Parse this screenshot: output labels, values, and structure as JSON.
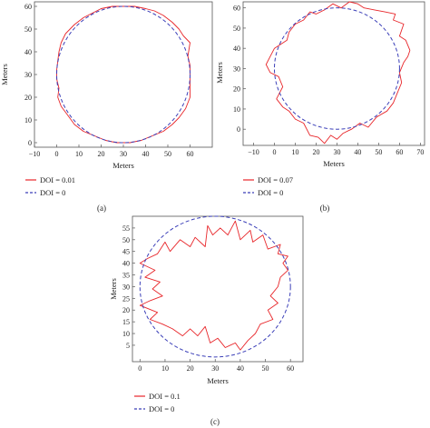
{
  "chart_data": [
    {
      "type": "line",
      "panel_label": "(a)",
      "xlabel": "Meters",
      "ylabel": "Meters",
      "xlim": [
        -10,
        70
      ],
      "ylim": [
        -2,
        62
      ],
      "xticks": [
        -10,
        0,
        10,
        20,
        30,
        40,
        50,
        60
      ],
      "yticks": [
        0,
        10,
        20,
        30,
        40,
        50,
        60
      ],
      "grid": false,
      "legend_position": "below",
      "series": [
        {
          "name": "DOI = 0.01",
          "color": "#e8262a",
          "dash": "solid",
          "points": [
            [
              60,
              30
            ],
            [
              60,
              34
            ],
            [
              59,
              38
            ],
            [
              60,
              44
            ],
            [
              57,
              47
            ],
            [
              55,
              50
            ],
            [
              52,
              53
            ],
            [
              48,
              56
            ],
            [
              44,
              58
            ],
            [
              40,
              59
            ],
            [
              35,
              60
            ],
            [
              30,
              60
            ],
            [
              25,
              60
            ],
            [
              20,
              59
            ],
            [
              16,
              57
            ],
            [
              12,
              55
            ],
            [
              8,
              52
            ],
            [
              4,
              48
            ],
            [
              2,
              44
            ],
            [
              1,
              40
            ],
            [
              0.5,
              36
            ],
            [
              0,
              32
            ],
            [
              0,
              28
            ],
            [
              1,
              24
            ],
            [
              0.5,
              20
            ],
            [
              2,
              16
            ],
            [
              5,
              12
            ],
            [
              8,
              8
            ],
            [
              12,
              5
            ],
            [
              17,
              3
            ],
            [
              22,
              1
            ],
            [
              27,
              0
            ],
            [
              33,
              0
            ],
            [
              38,
              1
            ],
            [
              43,
              3
            ],
            [
              48,
              5
            ],
            [
              52,
              8
            ],
            [
              55,
              11
            ],
            [
              58,
              15
            ],
            [
              60,
              20
            ],
            [
              60,
              25
            ],
            [
              60,
              30
            ]
          ]
        },
        {
          "name": "DOI = 0",
          "color": "#3b3fb8",
          "dash": "dashed",
          "circle": {
            "cx": 30,
            "cy": 30,
            "r": 30
          }
        }
      ]
    },
    {
      "type": "line",
      "panel_label": "(b)",
      "xlabel": "Meters",
      "ylabel": "Meters",
      "xlim": [
        -15,
        72
      ],
      "ylim": [
        -8,
        63
      ],
      "xticks": [
        -10,
        0,
        10,
        20,
        30,
        40,
        50,
        60,
        70
      ],
      "yticks": [
        0,
        10,
        20,
        30,
        40,
        50,
        60
      ],
      "grid": false,
      "legend_position": "below",
      "series": [
        {
          "name": "DOI = 0.07",
          "color": "#e8262a",
          "dash": "solid",
          "points": [
            [
              65,
              39
            ],
            [
              63,
              44
            ],
            [
              60,
              46
            ],
            [
              62,
              52
            ],
            [
              57,
              54
            ],
            [
              58,
              57
            ],
            [
              53,
              58
            ],
            [
              48,
              59
            ],
            [
              43,
              60
            ],
            [
              40,
              62
            ],
            [
              36,
              63
            ],
            [
              32,
              60
            ],
            [
              28,
              62
            ],
            [
              24,
              59
            ],
            [
              20,
              57
            ],
            [
              17,
              58
            ],
            [
              14,
              54
            ],
            [
              10,
              52
            ],
            [
              7,
              48
            ],
            [
              6,
              44
            ],
            [
              3,
              42
            ],
            [
              0,
              40
            ],
            [
              -2,
              36
            ],
            [
              -4,
              32
            ],
            [
              -2,
              28
            ],
            [
              2,
              26
            ],
            [
              4,
              21
            ],
            [
              1,
              15
            ],
            [
              4,
              11
            ],
            [
              7,
              9
            ],
            [
              10,
              5
            ],
            [
              14,
              3
            ],
            [
              17,
              -3
            ],
            [
              21,
              -4
            ],
            [
              24,
              -7
            ],
            [
              27,
              -3
            ],
            [
              30,
              -5
            ],
            [
              33,
              -2
            ],
            [
              37,
              0
            ],
            [
              41,
              3
            ],
            [
              45,
              1
            ],
            [
              49,
              6
            ],
            [
              54,
              9
            ],
            [
              57,
              13
            ],
            [
              59,
              18
            ],
            [
              61,
              23
            ],
            [
              60,
              28
            ],
            [
              62,
              33
            ],
            [
              64,
              36
            ],
            [
              65,
              39
            ]
          ]
        },
        {
          "name": "DOI = 0",
          "color": "#3b3fb8",
          "dash": "dashed",
          "circle": {
            "cx": 30,
            "cy": 30,
            "r": 30
          }
        }
      ]
    },
    {
      "type": "line",
      "panel_label": "(c)",
      "xlabel": "Meters",
      "ylabel": "Meters",
      "xlim": [
        -3,
        65
      ],
      "ylim": [
        -2,
        60
      ],
      "xticks": [
        0,
        10,
        20,
        30,
        40,
        50,
        60
      ],
      "yticks": [
        5,
        10,
        15,
        20,
        25,
        30,
        35,
        40,
        45,
        50,
        55
      ],
      "grid": false,
      "legend_position": "below",
      "series": [
        {
          "name": "DOI = 0.1",
          "color": "#e8262a",
          "dash": "solid",
          "points": [
            [
              55,
              30
            ],
            [
              56,
              34
            ],
            [
              59,
              37
            ],
            [
              57,
              40
            ],
            [
              59,
              43
            ],
            [
              55,
              44
            ],
            [
              56,
              48
            ],
            [
              51,
              46
            ],
            [
              49,
              52
            ],
            [
              45,
              49
            ],
            [
              44,
              54
            ],
            [
              40,
              50
            ],
            [
              38,
              58
            ],
            [
              35,
              52
            ],
            [
              32,
              55
            ],
            [
              29,
              52
            ],
            [
              27,
              56
            ],
            [
              26,
              47
            ],
            [
              22,
              51
            ],
            [
              20,
              47
            ],
            [
              16,
              50
            ],
            [
              12,
              45
            ],
            [
              10,
              49
            ],
            [
              7,
              44
            ],
            [
              3,
              42
            ],
            [
              0,
              40
            ],
            [
              6,
              37
            ],
            [
              2,
              34
            ],
            [
              8,
              32
            ],
            [
              5,
              29
            ],
            [
              9,
              26
            ],
            [
              4,
              24
            ],
            [
              0,
              22
            ],
            [
              7,
              19
            ],
            [
              4,
              16
            ],
            [
              9,
              14
            ],
            [
              13,
              12
            ],
            [
              17,
              9
            ],
            [
              20,
              12
            ],
            [
              23,
              9
            ],
            [
              26,
              13
            ],
            [
              28,
              6
            ],
            [
              31,
              8
            ],
            [
              34,
              4
            ],
            [
              38,
              6
            ],
            [
              40,
              3
            ],
            [
              43,
              7
            ],
            [
              46,
              10
            ],
            [
              48,
              14
            ],
            [
              53,
              16
            ],
            [
              51,
              20
            ],
            [
              55,
              23
            ],
            [
              52,
              26
            ],
            [
              55,
              30
            ]
          ]
        },
        {
          "name": "DOI = 0",
          "color": "#3b3fb8",
          "dash": "dashed",
          "circle": {
            "cx": 30,
            "cy": 30,
            "r": 30
          }
        }
      ]
    }
  ]
}
